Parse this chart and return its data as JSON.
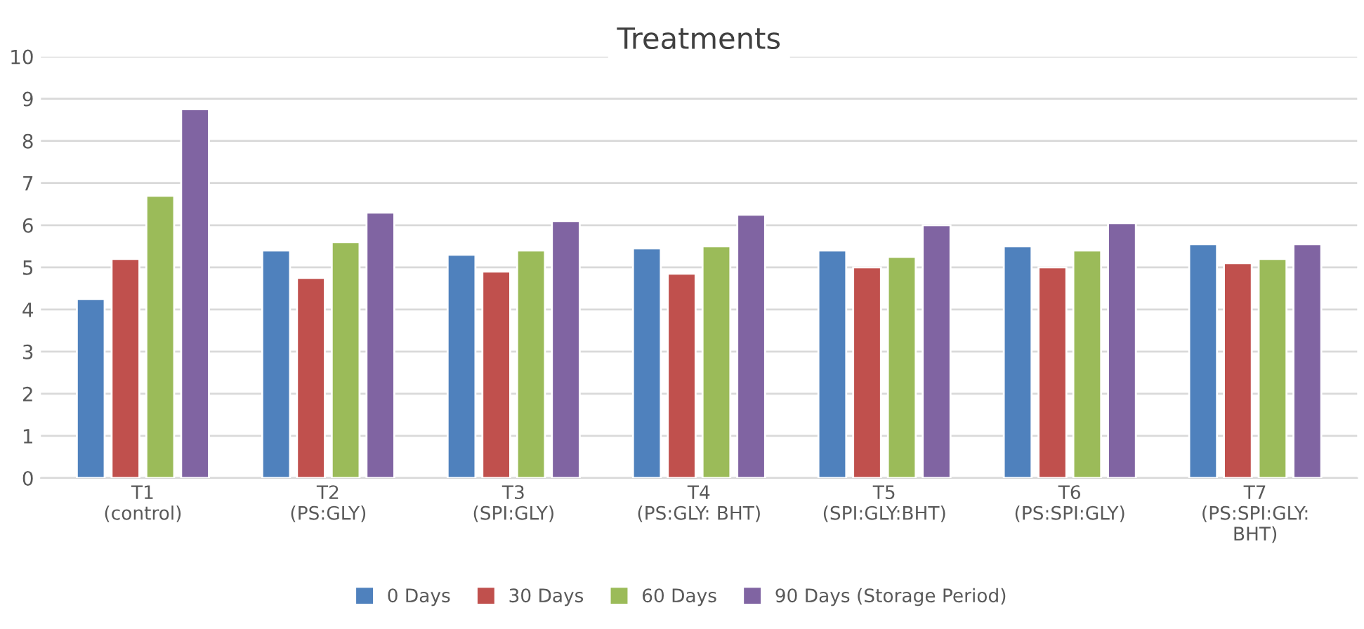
{
  "chart_data": {
    "type": "bar",
    "title": "Treatments",
    "categories": [
      "T1\n(control)",
      "T2\n(PS:GLY)",
      "T3\n(SPI:GLY)",
      "T4\n(PS:GLY: BHT)",
      "T5\n(SPI:GLY:BHT)",
      "T6\n(PS:SPI:GLY)",
      "T7\n(PS:SPI:GLY:\nBHT)"
    ],
    "series": [
      {
        "name": "0 Days",
        "color": "#4f81bd",
        "values": [
          4.25,
          5.4,
          5.3,
          5.45,
          5.4,
          5.5,
          5.55
        ]
      },
      {
        "name": "30 Days",
        "color": "#c0504d",
        "values": [
          5.2,
          4.75,
          4.9,
          4.85,
          5.0,
          5.0,
          5.1
        ]
      },
      {
        "name": "60 Days",
        "color": "#9bbb59",
        "values": [
          6.7,
          5.6,
          5.4,
          5.5,
          5.25,
          5.4,
          5.2
        ]
      },
      {
        "name": "90 Days (Storage Period)",
        "color": "#8064a2",
        "values": [
          8.75,
          6.3,
          6.1,
          6.25,
          6.0,
          6.05,
          5.55
        ]
      }
    ],
    "ylim": [
      0,
      10
    ],
    "yticks": [
      0,
      1,
      2,
      3,
      4,
      5,
      6,
      7,
      8,
      9,
      10
    ],
    "grid": "y",
    "legend": "bottom"
  }
}
